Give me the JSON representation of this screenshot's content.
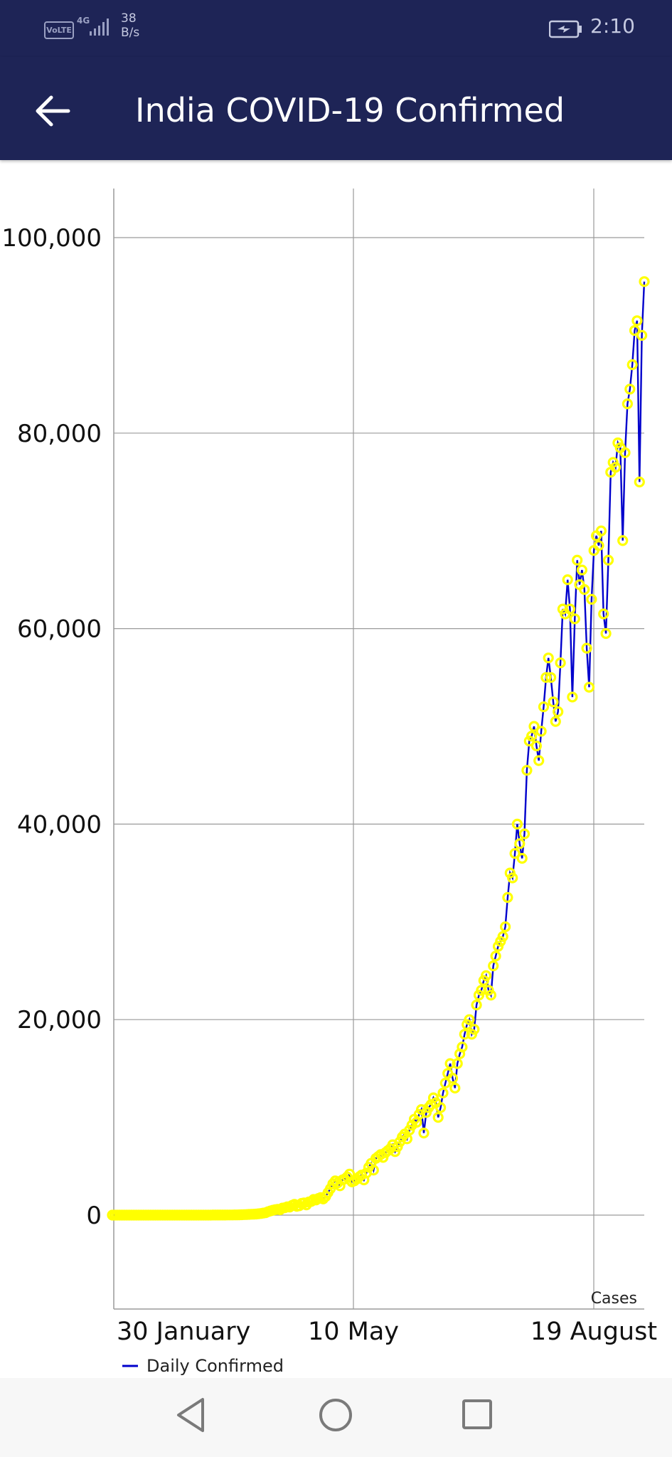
{
  "status_bar": {
    "volte": "VoLTE",
    "network": "4G",
    "data_rate_value": "38",
    "data_rate_unit": "B/s",
    "time": "2:10",
    "icons": [
      "volte-icon",
      "signal-icon",
      "battery-charging-icon"
    ]
  },
  "app_bar": {
    "title": "India COVID-19 Confirmed",
    "back_icon": "arrow-left-icon"
  },
  "colors": {
    "primary": "#1e2456",
    "line": "#0000cc",
    "marker": "#ffff00"
  },
  "chart_data": {
    "type": "line",
    "title": "",
    "xlabel": "",
    "ylabel": "",
    "x_ticks": [
      "30 January",
      "10 May",
      "19 August"
    ],
    "y_ticks": [
      "0",
      "20,000",
      "40,000",
      "60,000",
      "80,000",
      "100,000"
    ],
    "ylim": [
      -10000,
      105000
    ],
    "unit_label": "Cases",
    "legend": {
      "position": "bottom-left",
      "label": "Daily Confirmed"
    },
    "grid": true,
    "series": [
      {
        "name": "Daily Confirmed",
        "values": [
          0,
          0,
          0,
          0,
          0,
          0,
          0,
          0,
          0,
          0,
          0,
          0,
          0,
          0,
          0,
          0,
          0,
          0,
          0,
          0,
          0,
          0,
          0,
          0,
          0,
          0,
          0,
          0,
          0,
          0,
          0,
          0,
          0,
          0,
          1,
          1,
          1,
          2,
          3,
          3,
          3,
          3,
          5,
          4,
          6,
          6,
          8,
          9,
          11,
          12,
          15,
          20,
          22,
          30,
          40,
          50,
          60,
          75,
          86,
          96,
          110,
          140,
          170,
          210,
          250,
          350,
          430,
          500,
          560,
          600,
          550,
          720,
          760,
          850,
          820,
          1000,
          1100,
          900,
          950,
          1200,
          1250,
          1050,
          1350,
          1400,
          1600,
          1550,
          1700,
          1800,
          1650,
          1900,
          2300,
          2700,
          3200,
          3500,
          3300,
          3000,
          3600,
          3700,
          3900,
          4200,
          3400,
          3500,
          3700,
          3900,
          4100,
          3600,
          4300,
          4900,
          5300,
          4600,
          5800,
          6000,
          6200,
          5900,
          6400,
          6600,
          6800,
          7200,
          6500,
          7000,
          7500,
          8000,
          8300,
          7800,
          8700,
          9200,
          9800,
          9500,
          10300,
          10800,
          8400,
          10500,
          11000,
          11300,
          12000,
          11500,
          10000,
          11000,
          12500,
          13500,
          14500,
          15500,
          14000,
          13000,
          15500,
          16500,
          17200,
          18500,
          19500,
          20000,
          18500,
          19000,
          21500,
          22500,
          23000,
          24000,
          24500,
          23000,
          22500,
          25500,
          26500,
          27500,
          28000,
          28500,
          29500,
          32500,
          35000,
          34500,
          37000,
          40000,
          38000,
          36500,
          39000,
          45500,
          48500,
          49000,
          50000,
          48000,
          46500,
          49500,
          52000,
          55000,
          57000,
          55000,
          52500,
          50500,
          51500,
          56500,
          62000,
          61500,
          65000,
          62000,
          53000,
          61000,
          67000,
          64500,
          66000,
          64000,
          58000,
          54000,
          63000,
          68000,
          69500,
          68500,
          70000,
          61500,
          59500,
          67000,
          76000,
          77000,
          76500,
          79000,
          78500,
          69000,
          78000,
          83000,
          84500,
          87000,
          90500,
          91500,
          75000,
          90000,
          95500
        ]
      }
    ]
  },
  "nav_bar": {
    "buttons": [
      "back-triangle-icon",
      "home-circle-icon",
      "recents-square-icon"
    ]
  }
}
